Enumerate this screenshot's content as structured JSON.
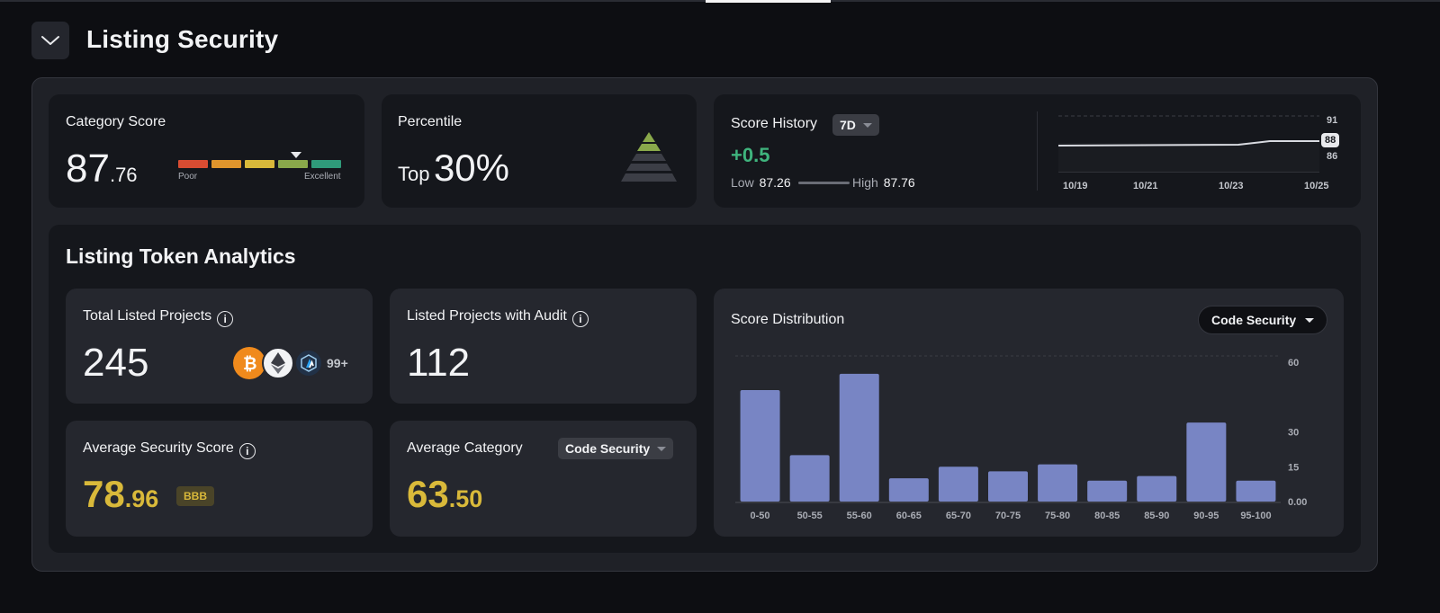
{
  "section": {
    "title": "Listing Security"
  },
  "category_score": {
    "label": "Category Score",
    "whole": "87",
    "decimal": ".76",
    "low_label": "Poor",
    "high_label": "Excellent",
    "value": 87.76,
    "colors": [
      "#d94c32",
      "#e0952c",
      "#d9b93a",
      "#8aa94b",
      "#2f9a7a"
    ]
  },
  "percentile": {
    "label": "Percentile",
    "prefix": "Top",
    "value": "30%"
  },
  "score_history": {
    "label": "Score History",
    "range": "7D",
    "change": "+0.5",
    "low_label": "Low",
    "low_value": "87.26",
    "high_label": "High",
    "high_value": "87.76",
    "y_ticks": [
      "91",
      "88",
      "86"
    ],
    "x_ticks": [
      "10/19",
      "10/21",
      "10/23",
      "10/25"
    ]
  },
  "analytics": {
    "title": "Listing Token Analytics",
    "total": {
      "label": "Total Listed Projects",
      "value": "245",
      "more": "99+"
    },
    "audit": {
      "label": "Listed Projects with Audit",
      "value": "112"
    },
    "avg_security": {
      "label": "Average Security Score",
      "whole": "78",
      "decimal": ".96",
      "rating": "BBB"
    },
    "avg_category": {
      "label": "Average Category",
      "selector": "Code Security",
      "whole": "63",
      "decimal": ".50"
    },
    "distribution": {
      "label": "Score Distribution",
      "selector": "Code Security"
    }
  },
  "chart_data": {
    "type": "bar",
    "title": "Score Distribution",
    "categories": [
      "0-50",
      "50-55",
      "55-60",
      "60-65",
      "65-70",
      "70-75",
      "75-80",
      "80-85",
      "85-90",
      "90-95",
      "95-100"
    ],
    "values": [
      48,
      20,
      55,
      10,
      15,
      13,
      16,
      9,
      11,
      34,
      9
    ],
    "y_ticks": [
      "60",
      "30",
      "15",
      "0.00"
    ],
    "ylim": [
      0,
      60
    ],
    "color": "#7885c4"
  }
}
